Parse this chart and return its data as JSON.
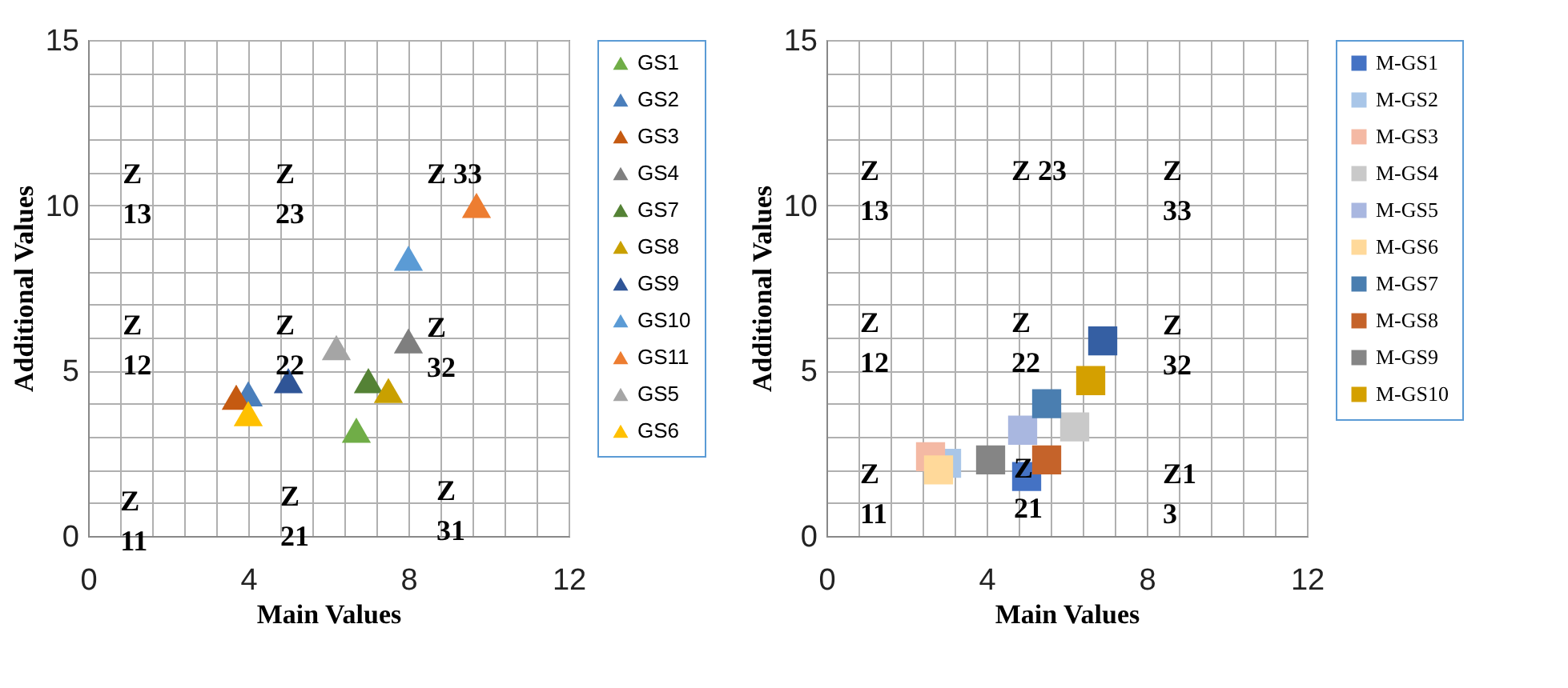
{
  "chart_data": [
    {
      "type": "scatter",
      "xlabel": "Main Values",
      "ylabel": "Additional Values",
      "marker": "triangle",
      "legend": "right",
      "grid": true,
      "xlim": [
        0,
        12
      ],
      "ylim": [
        0,
        15
      ],
      "xticks": [
        0,
        {
          "value": 0.8,
          "label": null
        },
        {
          "value": 1.6,
          "label": null
        },
        {
          "value": 2.4,
          "label": null
        },
        {
          "value": 3.2,
          "label": null
        },
        4,
        {
          "value": 4.8,
          "label": null
        },
        {
          "value": 5.6,
          "label": null
        },
        {
          "value": 6.4,
          "label": null
        },
        {
          "value": 7.2,
          "label": null
        },
        8,
        {
          "value": 8.8,
          "label": null
        },
        {
          "value": 9.6,
          "label": null
        },
        {
          "value": 10.4,
          "label": null
        },
        {
          "value": 11.2,
          "label": null
        },
        12
      ],
      "yticks": [
        0,
        {
          "value": 1,
          "label": null
        },
        {
          "value": 2,
          "label": null
        },
        {
          "value": 3,
          "label": null
        },
        {
          "value": 4,
          "label": null
        },
        5,
        {
          "value": 6,
          "label": null
        },
        {
          "value": 7,
          "label": null
        },
        {
          "value": 8,
          "label": null
        },
        {
          "value": 9,
          "label": null
        },
        10,
        {
          "value": 11,
          "label": null
        },
        {
          "value": 12,
          "label": null
        },
        {
          "value": 13,
          "label": null
        },
        {
          "value": 14,
          "label": null
        },
        15
      ],
      "series": [
        {
          "name": "GS1",
          "color": "#70ad47",
          "x": [
            6.7
          ],
          "values": [
            3.2
          ]
        },
        {
          "name": "GS2",
          "color": "#4a7ebb",
          "x": [
            4.0
          ],
          "values": [
            4.3
          ]
        },
        {
          "name": "GS3",
          "color": "#c55a11",
          "x": [
            3.7
          ],
          "values": [
            4.2
          ]
        },
        {
          "name": "GS4",
          "color": "#7f7f7f",
          "x": [
            8.0
          ],
          "values": [
            5.9
          ]
        },
        {
          "name": "GS7",
          "color": "#548235",
          "x": [
            7.0
          ],
          "values": [
            4.7
          ]
        },
        {
          "name": "GS8",
          "color": "#c9a000",
          "x": [
            7.5
          ],
          "values": [
            4.4
          ]
        },
        {
          "name": "GS9",
          "color": "#2f5597",
          "x": [
            5.0
          ],
          "values": [
            4.7
          ]
        },
        {
          "name": "GS10",
          "color": "#5b9bd5",
          "x": [
            8.0
          ],
          "values": [
            8.4
          ]
        },
        {
          "name": "GS11",
          "color": "#ed7d31",
          "x": [
            9.7
          ],
          "values": [
            10.0
          ]
        },
        {
          "name": "GS5",
          "color": "#a5a5a5",
          "x": [
            6.2
          ],
          "values": [
            5.7
          ]
        },
        {
          "name": "GS6",
          "color": "#ffc000",
          "x": [
            4.0
          ],
          "values": [
            3.7
          ]
        }
      ],
      "annotations": [
        "Z\n13",
        "Z\n23",
        "Z 33",
        "Z\n12",
        "Z\n22",
        "Z\n32",
        "Z\n11",
        "Z\n21",
        "Z\n31"
      ]
    },
    {
      "type": "scatter",
      "xlabel": "Main Values",
      "ylabel": "Additional Values",
      "marker": "square",
      "legend": "right",
      "grid": true,
      "xlim": [
        0,
        12
      ],
      "ylim": [
        0,
        15
      ],
      "xticks": [
        0,
        {
          "value": 0.8,
          "label": null
        },
        {
          "value": 1.6,
          "label": null
        },
        {
          "value": 2.4,
          "label": null
        },
        {
          "value": 3.2,
          "label": null
        },
        4,
        {
          "value": 4.8,
          "label": null
        },
        {
          "value": 5.6,
          "label": null
        },
        {
          "value": 6.4,
          "label": null
        },
        {
          "value": 7.2,
          "label": null
        },
        8,
        {
          "value": 8.8,
          "label": null
        },
        {
          "value": 9.6,
          "label": null
        },
        {
          "value": 10.4,
          "label": null
        },
        {
          "value": 11.2,
          "label": null
        },
        12
      ],
      "yticks": [
        0,
        {
          "value": 1,
          "label": null
        },
        {
          "value": 2,
          "label": null
        },
        {
          "value": 3,
          "label": null
        },
        {
          "value": 4,
          "label": null
        },
        5,
        {
          "value": 6,
          "label": null
        },
        {
          "value": 7,
          "label": null
        },
        {
          "value": 8,
          "label": null
        },
        {
          "value": 9,
          "label": null
        },
        10,
        {
          "value": 11,
          "label": null
        },
        {
          "value": 12,
          "label": null
        },
        {
          "value": 13,
          "label": null
        },
        {
          "value": 14,
          "label": null
        },
        15
      ],
      "series": [
        {
          "name": "M-GS1",
          "color": "#4472c4",
          "x": [
            5.0
          ],
          "values": [
            1.8
          ]
        },
        {
          "name": "M-GS2",
          "color": "#a9c6e8",
          "x": [
            3.0
          ],
          "values": [
            2.2
          ]
        },
        {
          "name": "M-GS3",
          "color": "#f4b9a4",
          "x": [
            2.6
          ],
          "values": [
            2.4
          ]
        },
        {
          "name": "M-GS4",
          "color": "#c9c9c9",
          "x": [
            6.2
          ],
          "values": [
            3.3
          ]
        },
        {
          "name": "M-GS5",
          "color": "#a9b7e0",
          "x": [
            4.9
          ],
          "values": [
            3.2
          ]
        },
        {
          "name": "M-GS6",
          "color": "#ffd99a",
          "x": [
            2.8
          ],
          "values": [
            2.0
          ]
        },
        {
          "name": "M-GS7",
          "color": "#4a7eb0",
          "x": [
            5.5
          ],
          "values": [
            4.0
          ]
        },
        {
          "name": "M-GS8",
          "color": "#c5632a",
          "x": [
            5.5
          ],
          "values": [
            2.3
          ]
        },
        {
          "name": "M-GS9",
          "color": "#858585",
          "x": [
            4.1
          ],
          "values": [
            2.3
          ]
        },
        {
          "name": "M-GS10",
          "color": "#d4a000",
          "x": [
            6.6
          ],
          "values": [
            4.7
          ]
        },
        {
          "color": "#355fa3",
          "x": [
            6.9
          ],
          "values": [
            5.9
          ]
        }
      ],
      "annotations": [
        "Z\n13",
        "Z 23",
        "Z\n33",
        "Z\n12",
        "Z\n22",
        "Z\n32",
        "Z\n11",
        "Z\n21",
        "Z1\n3"
      ]
    }
  ]
}
